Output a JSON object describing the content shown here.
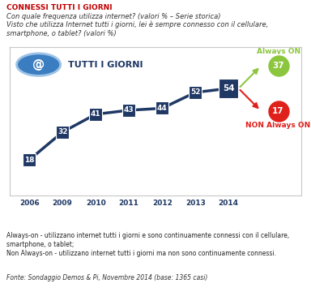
{
  "chart_data": {
    "type": "line",
    "title": "CONNESSI TUTTI I GIORNI",
    "subtitle": [
      "Con quale frequenza utilizza internet? (valori % – Serie storica)",
      "Visto che utilizza Internet tutti i giorni, lei è sempre connesso con il cellulare, smartphone, o tablet? (valori %)"
    ],
    "panel_label": "TUTTI I GIORNI",
    "icon_text": "@",
    "categories": [
      "2006",
      "2009",
      "2010",
      "2011",
      "2012",
      "2013",
      "2014"
    ],
    "values": [
      18,
      32,
      41,
      43,
      44,
      52,
      54
    ],
    "color": "#1f3864",
    "marker": "square",
    "line_style": "solid",
    "data_labels": true,
    "ylim": [
      0,
      75
    ],
    "tick_labels": "x",
    "grid": false,
    "breakdown": [
      {
        "name": "Always ON",
        "value": 37,
        "color": "#8cc63f"
      },
      {
        "name": "NON Always ON",
        "value": 17,
        "color": "#e0201b"
      }
    ],
    "notes": [
      "Always-on - utilizzano internet tutti i giorni e sono continuamente connessi con il cellulare, smartphone, o tablet;",
      "Non Always-on - utilizzano internet tutti i giorni ma non sono continuamente connessi."
    ],
    "source": "Fonte: Sondaggio Demos & Pi, Novembre 2014 (base: 1365 casi)"
  }
}
